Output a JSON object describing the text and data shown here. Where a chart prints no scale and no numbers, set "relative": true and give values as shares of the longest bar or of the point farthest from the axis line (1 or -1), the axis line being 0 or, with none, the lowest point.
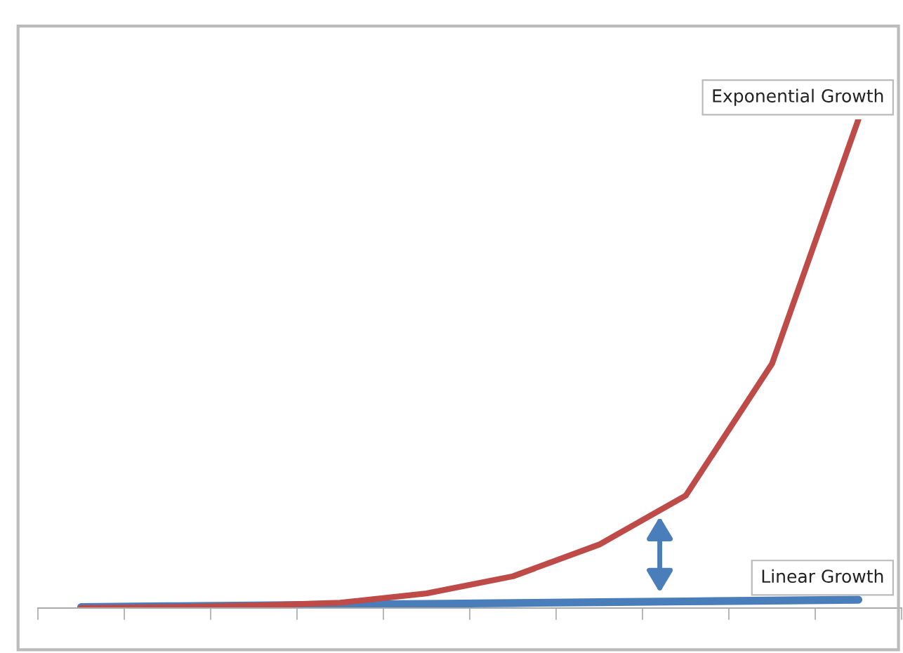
{
  "chart_data": {
    "type": "line",
    "relative": true,
    "categories": [
      null,
      null,
      null,
      null,
      null,
      null,
      null,
      null,
      null,
      null
    ],
    "grid": false,
    "legend": false,
    "marker": "none",
    "line_style": "solid",
    "series": [
      {
        "name": "Linear Growth",
        "color": "#4a7ebb",
        "values": [
          0.002,
          0.0037,
          0.0053,
          0.007,
          0.0087,
          0.0103,
          0.012,
          0.0137,
          0.0153,
          0.017
        ]
      },
      {
        "name": "Exponential Growth",
        "color": "#be4b48",
        "values": [
          0,
          0.002,
          0.005,
          0.011,
          0.03,
          0.065,
          0.13,
          0.23,
          0.5,
          1
        ]
      }
    ]
  }
}
